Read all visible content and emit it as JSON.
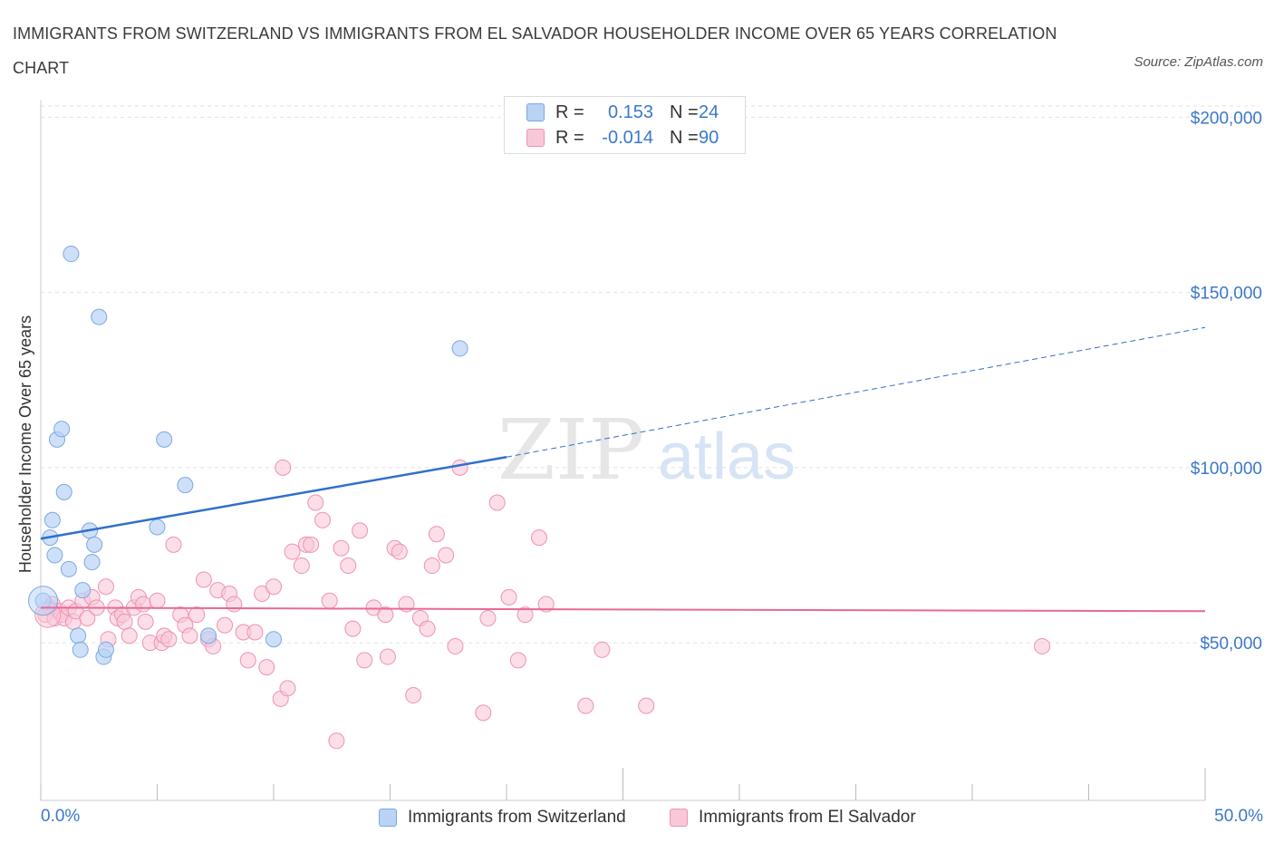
{
  "title": "IMMIGRANTS FROM SWITZERLAND VS IMMIGRANTS FROM EL SALVADOR HOUSEHOLDER INCOME OVER 65 YEARS CORRELATION CHART",
  "source": "Source: ZipAtlas.com",
  "watermark": {
    "zip": "ZIP",
    "atlas": "atlas"
  },
  "legend": {
    "r_label": "R =",
    "n_label": "N =",
    "series": [
      {
        "r": "0.153",
        "n": "24"
      },
      {
        "r": "-0.014",
        "n": "90"
      }
    ]
  },
  "colors": {
    "switzerland_fill": "#b9d3f5",
    "switzerland_stroke": "#7aa8e2",
    "switzerland_line": "#2f6fcb",
    "elsalvador_fill": "#f8c8d8",
    "elsalvador_stroke": "#ee92b1",
    "elsalvador_line": "#e8689a",
    "axis_label": "#3a78c8",
    "grid": "#e2e2e2"
  },
  "chart_data": {
    "type": "scatter",
    "title": "IMMIGRANTS FROM SWITZERLAND VS IMMIGRANTS FROM EL SALVADOR HOUSEHOLDER INCOME OVER 65 YEARS CORRELATION CHART",
    "xlabel": "",
    "ylabel": "Householder Income Over 65 years",
    "xlim": [
      0,
      50
    ],
    "ylim": [
      5000,
      205000
    ],
    "x_tick_labels": [
      "0.0%",
      "50.0%"
    ],
    "y_ticks": [
      50000,
      100000,
      150000,
      200000
    ],
    "y_tick_labels": [
      "$50,000",
      "$100,000",
      "$150,000",
      "$200,000"
    ],
    "grid": true,
    "legend_position": "top-center",
    "series": [
      {
        "name": "Immigrants from Switzerland",
        "r": 0.153,
        "n": 24,
        "trend": {
          "x0": 0,
          "y0": 79700,
          "x_solid_end": 20,
          "y_solid_end": 103000,
          "x1": 50,
          "y1": 140000
        },
        "points": [
          [
            0.1,
            62000
          ],
          [
            0.4,
            80000
          ],
          [
            0.5,
            85000
          ],
          [
            0.6,
            75000
          ],
          [
            0.7,
            108000
          ],
          [
            0.9,
            111000
          ],
          [
            1.0,
            93000
          ],
          [
            1.2,
            71000
          ],
          [
            1.3,
            161000
          ],
          [
            1.6,
            52000
          ],
          [
            1.7,
            48000
          ],
          [
            1.8,
            65000
          ],
          [
            2.1,
            82000
          ],
          [
            2.2,
            73000
          ],
          [
            2.3,
            78000
          ],
          [
            2.5,
            143000
          ],
          [
            2.7,
            46000
          ],
          [
            2.8,
            48000
          ],
          [
            5.0,
            83000
          ],
          [
            5.3,
            108000
          ],
          [
            6.2,
            95000
          ],
          [
            7.2,
            52000
          ],
          [
            10.0,
            51000
          ],
          [
            18.0,
            134000
          ]
        ]
      },
      {
        "name": "Immigrants from El Salvador",
        "r": -0.014,
        "n": 90,
        "trend": {
          "x0": 0,
          "y0": 60000,
          "x1": 50,
          "y1": 59000
        },
        "points": [
          [
            0.2,
            58000
          ],
          [
            0.4,
            60000
          ],
          [
            0.5,
            61000
          ],
          [
            0.6,
            57000
          ],
          [
            0.8,
            59000
          ],
          [
            0.9,
            58000
          ],
          [
            1.0,
            57000
          ],
          [
            1.2,
            60000
          ],
          [
            1.4,
            56000
          ],
          [
            1.5,
            59000
          ],
          [
            1.8,
            62000
          ],
          [
            2.0,
            57000
          ],
          [
            2.2,
            63000
          ],
          [
            2.4,
            60000
          ],
          [
            2.8,
            66000
          ],
          [
            2.9,
            51000
          ],
          [
            3.2,
            60000
          ],
          [
            3.3,
            57000
          ],
          [
            3.5,
            58000
          ],
          [
            3.6,
            56000
          ],
          [
            3.8,
            52000
          ],
          [
            4.0,
            60000
          ],
          [
            4.2,
            63000
          ],
          [
            4.4,
            61000
          ],
          [
            4.5,
            56000
          ],
          [
            4.7,
            50000
          ],
          [
            5.0,
            62000
          ],
          [
            5.2,
            50000
          ],
          [
            5.3,
            52000
          ],
          [
            5.5,
            51000
          ],
          [
            5.7,
            78000
          ],
          [
            6.0,
            58000
          ],
          [
            6.2,
            55000
          ],
          [
            6.4,
            52000
          ],
          [
            6.7,
            58000
          ],
          [
            7.0,
            68000
          ],
          [
            7.2,
            51000
          ],
          [
            7.4,
            49000
          ],
          [
            7.6,
            65000
          ],
          [
            7.9,
            55000
          ],
          [
            8.1,
            64000
          ],
          [
            8.3,
            61000
          ],
          [
            8.7,
            53000
          ],
          [
            8.9,
            45000
          ],
          [
            9.2,
            53000
          ],
          [
            9.5,
            64000
          ],
          [
            9.7,
            43000
          ],
          [
            10.0,
            66000
          ],
          [
            10.3,
            34000
          ],
          [
            10.6,
            37000
          ],
          [
            10.8,
            76000
          ],
          [
            11.2,
            72000
          ],
          [
            11.4,
            78000
          ],
          [
            11.6,
            78000
          ],
          [
            11.8,
            90000
          ],
          [
            12.1,
            85000
          ],
          [
            12.4,
            62000
          ],
          [
            12.7,
            22000
          ],
          [
            12.9,
            77000
          ],
          [
            13.2,
            72000
          ],
          [
            13.4,
            54000
          ],
          [
            13.7,
            82000
          ],
          [
            13.9,
            45000
          ],
          [
            14.3,
            60000
          ],
          [
            14.8,
            58000
          ],
          [
            15.2,
            77000
          ],
          [
            15.4,
            76000
          ],
          [
            15.7,
            61000
          ],
          [
            16.0,
            35000
          ],
          [
            16.3,
            57000
          ],
          [
            16.6,
            54000
          ],
          [
            16.8,
            72000
          ],
          [
            17.0,
            81000
          ],
          [
            17.4,
            75000
          ],
          [
            17.8,
            49000
          ],
          [
            18.0,
            100000
          ],
          [
            19.0,
            30000
          ],
          [
            19.2,
            57000
          ],
          [
            19.6,
            90000
          ],
          [
            20.1,
            63000
          ],
          [
            20.5,
            45000
          ],
          [
            20.8,
            58000
          ],
          [
            21.4,
            80000
          ],
          [
            21.7,
            61000
          ],
          [
            23.4,
            32000
          ],
          [
            24.1,
            48000
          ],
          [
            26.0,
            32000
          ],
          [
            10.4,
            100000
          ],
          [
            14.9,
            46000
          ],
          [
            43.0,
            49000
          ]
        ]
      }
    ]
  }
}
